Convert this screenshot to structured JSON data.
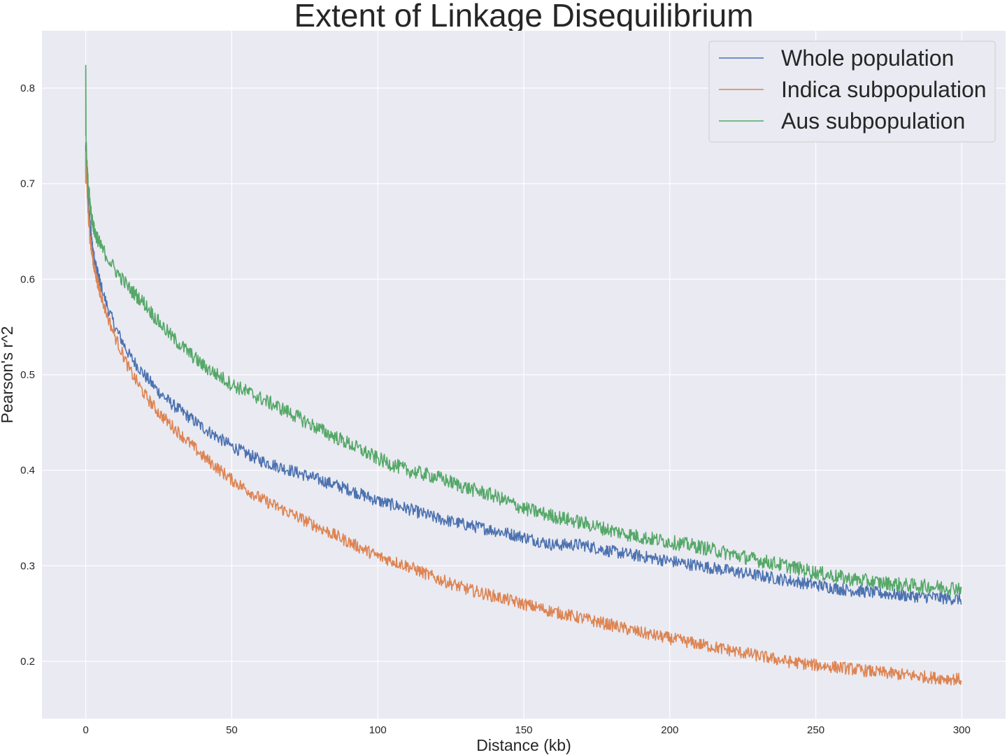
{
  "chart_data": {
    "type": "line",
    "title": "Extent of Linkage Disequilibrium",
    "xlabel": "Distance (kb)",
    "ylabel": "Pearson's r^2",
    "xlim": [
      -15,
      315
    ],
    "ylim": [
      0.14,
      0.86
    ],
    "xticks": [
      0,
      50,
      100,
      150,
      200,
      250,
      300
    ],
    "yticks": [
      0.2,
      0.3,
      0.4,
      0.5,
      0.6,
      0.7,
      0.8
    ],
    "xtick_labels": [
      "0",
      "50",
      "100",
      "150",
      "200",
      "250",
      "300"
    ],
    "ytick_labels": [
      "0.2",
      "0.3",
      "0.4",
      "0.5",
      "0.6",
      "0.7",
      "0.8"
    ],
    "grid": true,
    "legend_position": "top-right",
    "background_color": "#eaeaf2",
    "series": [
      {
        "name": "Whole population",
        "color": "#4c72b0",
        "x": [
          0,
          0.3,
          1,
          2,
          3,
          5,
          7,
          10,
          15,
          20,
          25,
          30,
          40,
          50,
          60,
          70,
          80,
          90,
          100,
          110,
          120,
          130,
          140,
          150,
          160,
          170,
          180,
          190,
          200,
          210,
          220,
          230,
          240,
          250,
          260,
          270,
          280,
          290,
          300
        ],
        "y": [
          0.74,
          0.71,
          0.67,
          0.64,
          0.62,
          0.595,
          0.575,
          0.55,
          0.52,
          0.5,
          0.482,
          0.468,
          0.445,
          0.425,
          0.41,
          0.4,
          0.39,
          0.38,
          0.368,
          0.36,
          0.35,
          0.343,
          0.337,
          0.33,
          0.322,
          0.322,
          0.315,
          0.31,
          0.305,
          0.3,
          0.295,
          0.29,
          0.285,
          0.28,
          0.275,
          0.272,
          0.269,
          0.267,
          0.265
        ],
        "band": 0.013
      },
      {
        "name": "Indica subpopulation",
        "color": "#dd8452",
        "x": [
          0,
          0.3,
          1,
          2,
          3,
          5,
          7,
          10,
          15,
          20,
          25,
          30,
          40,
          50,
          60,
          70,
          80,
          90,
          100,
          110,
          120,
          130,
          140,
          150,
          160,
          170,
          180,
          190,
          200,
          210,
          220,
          230,
          240,
          250,
          260,
          270,
          280,
          290,
          300
        ],
        "y": [
          0.73,
          0.7,
          0.66,
          0.63,
          0.61,
          0.585,
          0.565,
          0.54,
          0.505,
          0.48,
          0.46,
          0.445,
          0.415,
          0.39,
          0.37,
          0.355,
          0.34,
          0.325,
          0.31,
          0.3,
          0.287,
          0.276,
          0.268,
          0.26,
          0.252,
          0.245,
          0.238,
          0.23,
          0.224,
          0.218,
          0.212,
          0.206,
          0.2,
          0.196,
          0.193,
          0.189,
          0.186,
          0.183,
          0.181
        ],
        "band": 0.013
      },
      {
        "name": "Aus subpopulation",
        "color": "#55a868",
        "x": [
          0,
          0.1,
          0.3,
          1,
          2,
          3,
          5,
          7,
          10,
          15,
          20,
          25,
          30,
          40,
          50,
          60,
          70,
          80,
          90,
          100,
          110,
          120,
          130,
          140,
          150,
          160,
          170,
          180,
          190,
          200,
          210,
          220,
          230,
          240,
          250,
          260,
          270,
          280,
          290,
          300
        ],
        "y": [
          0.82,
          0.75,
          0.72,
          0.69,
          0.665,
          0.65,
          0.635,
          0.625,
          0.61,
          0.59,
          0.575,
          0.555,
          0.538,
          0.51,
          0.49,
          0.475,
          0.46,
          0.443,
          0.428,
          0.412,
          0.4,
          0.393,
          0.382,
          0.373,
          0.36,
          0.352,
          0.345,
          0.337,
          0.33,
          0.325,
          0.32,
          0.313,
          0.306,
          0.3,
          0.293,
          0.287,
          0.283,
          0.28,
          0.278,
          0.277
        ],
        "band": 0.015
      }
    ]
  }
}
